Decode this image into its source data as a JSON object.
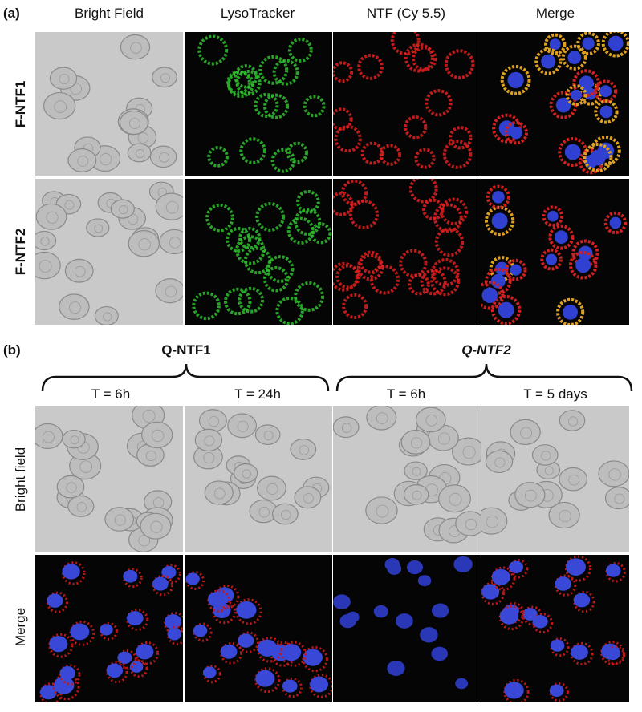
{
  "panel_a": {
    "label": "(a)",
    "columns": [
      "Bright Field",
      "LysoTracker",
      "NTF (Cy 5.5)",
      "Merge"
    ],
    "rows": [
      "F-NTF1",
      "F-NTF2"
    ]
  },
  "panel_b": {
    "label": "(b)",
    "groups": [
      {
        "title": "Q-NTF1",
        "columns": [
          "T = 6h",
          "T = 24h"
        ]
      },
      {
        "title": "Q-NTF2",
        "columns": [
          "T = 6h",
          "T = 5 days"
        ]
      }
    ],
    "rows": [
      "Bright field",
      "Merge"
    ]
  }
}
